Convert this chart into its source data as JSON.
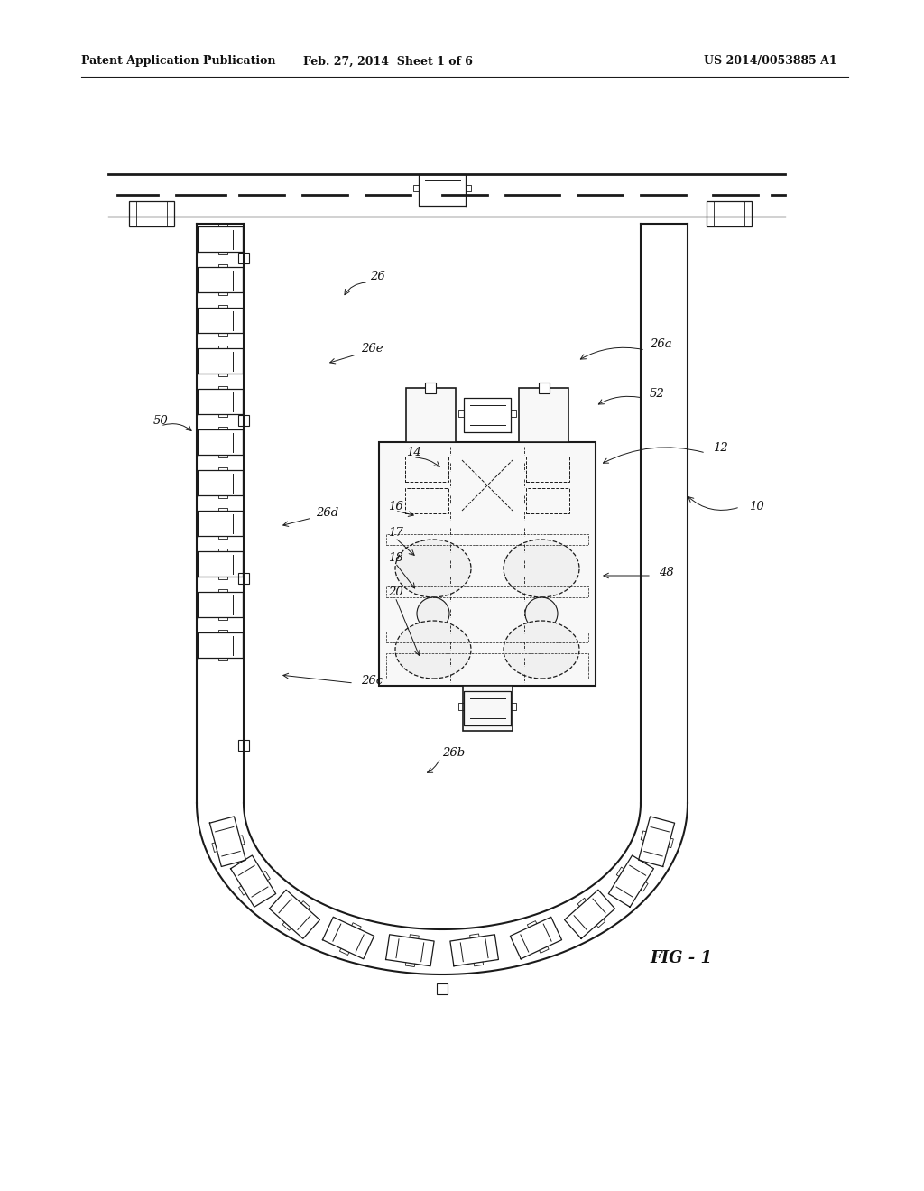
{
  "title_left": "Patent Application Publication",
  "title_mid": "Feb. 27, 2014  Sheet 1 of 6",
  "title_right": "US 2014/0053885 A1",
  "fig_label": "FIG - 1",
  "bg_color": "#ffffff",
  "line_color": "#1a1a1a"
}
